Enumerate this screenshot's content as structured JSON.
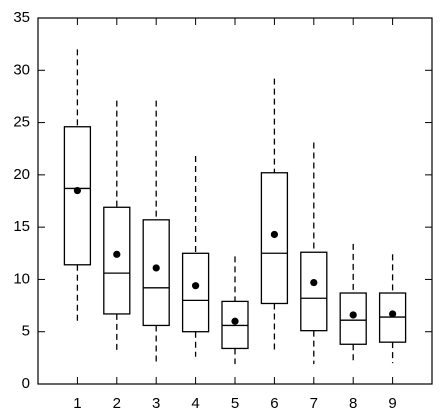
{
  "chart_data": {
    "type": "box",
    "categories": [
      "1",
      "2",
      "3",
      "4",
      "5",
      "6",
      "7",
      "8",
      "9"
    ],
    "whisker_high": [
      32,
      27.1,
      27.1,
      21.8,
      12.2,
      29.2,
      23.1,
      13.4,
      12.4
    ],
    "q3": [
      24.6,
      16.9,
      15.7,
      12.5,
      7.9,
      20.2,
      12.6,
      8.7,
      8.7
    ],
    "median": [
      18.7,
      10.6,
      9.2,
      8.0,
      5.6,
      12.5,
      8.2,
      6.1,
      6.4
    ],
    "q1": [
      11.4,
      6.7,
      5.6,
      5.0,
      3.4,
      7.7,
      5.1,
      3.8,
      4.0
    ],
    "whisker_low": [
      5.9,
      3.1,
      2.1,
      2.6,
      1.9,
      3.3,
      1.9,
      2.0,
      2.0
    ],
    "mean": [
      18.5,
      12.4,
      11.1,
      9.4,
      6.0,
      14.3,
      9.7,
      6.6,
      6.7
    ],
    "color": "#000000",
    "ylim": [
      0,
      35
    ],
    "yticks": [
      0,
      5,
      10,
      15,
      20,
      25,
      30,
      35
    ],
    "grid": false
  }
}
